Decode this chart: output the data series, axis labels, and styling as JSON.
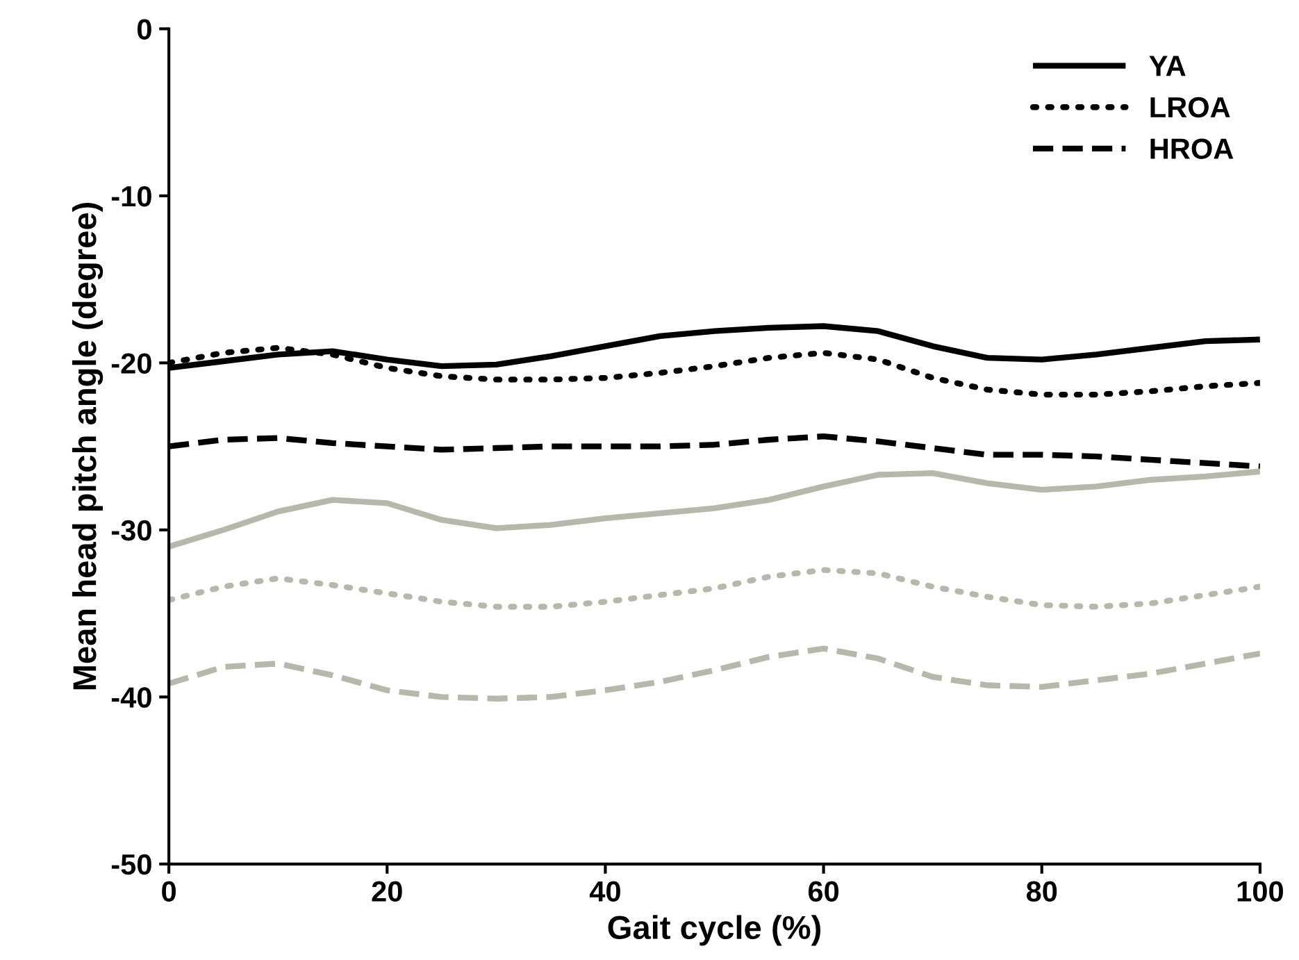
{
  "chart_data": {
    "type": "line",
    "xlabel": "Gait cycle (%)",
    "ylabel": "Mean head pitch angle (degree)",
    "x": [
      0,
      5,
      10,
      15,
      20,
      25,
      30,
      35,
      40,
      45,
      50,
      55,
      60,
      65,
      70,
      75,
      80,
      85,
      90,
      95,
      100
    ],
    "xlim": [
      0,
      100
    ],
    "xticks": [
      0,
      20,
      40,
      60,
      80,
      100
    ],
    "ylim": [
      -50,
      0
    ],
    "yticks": [
      -50,
      -40,
      -30,
      -20,
      -10,
      0
    ],
    "grid": false,
    "legend": "top right",
    "marker": "none",
    "series": [
      {
        "name": "YA",
        "color": "#000000",
        "line_style": "solid",
        "values": [
          -20.3,
          -19.9,
          -19.5,
          -19.3,
          -19.8,
          -20.2,
          -20.1,
          -19.6,
          -19.0,
          -18.4,
          -18.1,
          -17.9,
          -17.8,
          -18.1,
          -19.0,
          -19.7,
          -19.8,
          -19.5,
          -19.1,
          -18.7,
          -18.6
        ]
      },
      {
        "name": "LROA",
        "color": "#000000",
        "line_style": "dotted",
        "values": [
          -20.0,
          -19.4,
          -19.1,
          -19.5,
          -20.3,
          -20.8,
          -21.0,
          -21.0,
          -20.9,
          -20.6,
          -20.2,
          -19.7,
          -19.4,
          -19.8,
          -20.9,
          -21.6,
          -21.9,
          -21.9,
          -21.7,
          -21.4,
          -21.2
        ]
      },
      {
        "name": "HROA",
        "color": "#000000",
        "line_style": "dashed",
        "values": [
          -25.0,
          -24.6,
          -24.5,
          -24.8,
          -25.0,
          -25.2,
          -25.1,
          -25.0,
          -25.0,
          -25.0,
          -24.9,
          -24.6,
          -24.4,
          -24.7,
          -25.1,
          -25.5,
          -25.5,
          -25.6,
          -25.8,
          -26.0,
          -26.2
        ]
      },
      {
        "color": "#b8b8aa",
        "line_style": "solid",
        "values": [
          -31.0,
          -30.0,
          -28.9,
          -28.2,
          -28.4,
          -29.4,
          -29.9,
          -29.7,
          -29.3,
          -29.0,
          -28.7,
          -28.2,
          -27.4,
          -26.7,
          -26.6,
          -27.2,
          -27.6,
          -27.4,
          -27.0,
          -26.8,
          -26.5
        ]
      },
      {
        "color": "#b8b8aa",
        "line_style": "dotted",
        "values": [
          -34.2,
          -33.4,
          -32.9,
          -33.3,
          -33.8,
          -34.3,
          -34.6,
          -34.6,
          -34.3,
          -33.9,
          -33.5,
          -32.8,
          -32.4,
          -32.6,
          -33.4,
          -34.0,
          -34.5,
          -34.6,
          -34.4,
          -33.9,
          -33.4
        ]
      },
      {
        "color": "#b8b8aa",
        "line_style": "dashed",
        "values": [
          -39.2,
          -38.2,
          -38.0,
          -38.7,
          -39.6,
          -40.0,
          -40.1,
          -40.0,
          -39.6,
          -39.1,
          -38.4,
          -37.6,
          -37.1,
          -37.7,
          -38.8,
          -39.3,
          -39.4,
          -39.0,
          -38.6,
          -38.0,
          -37.4
        ]
      }
    ]
  }
}
